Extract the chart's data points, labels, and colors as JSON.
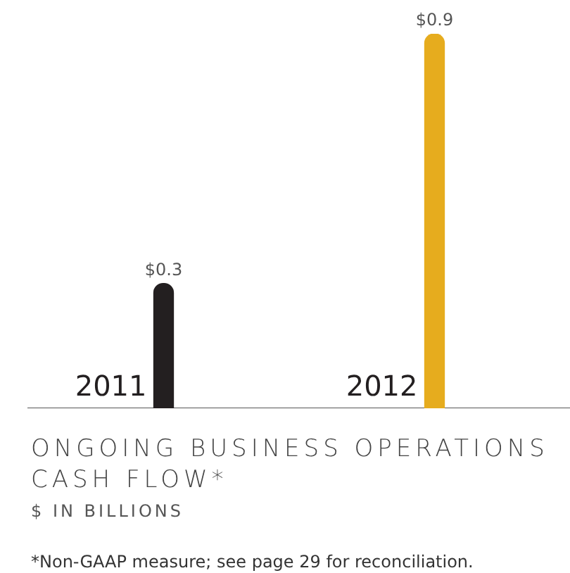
{
  "chart_data": {
    "type": "bar",
    "title": "ONGOING BUSINESS OPERATIONS CASH FLOW*",
    "subtitle": "$ IN BILLIONS",
    "annotations": [
      "*Non-GAAP measure; see page 29 for reconciliation."
    ],
    "categories": [
      "2011",
      "2012"
    ],
    "values": [
      0.3,
      0.9
    ],
    "colors": [
      "#231f20",
      "#e6ac1e"
    ],
    "value_labels": [
      "$0.3",
      "$0.9"
    ],
    "grid": false,
    "legend": false
  }
}
